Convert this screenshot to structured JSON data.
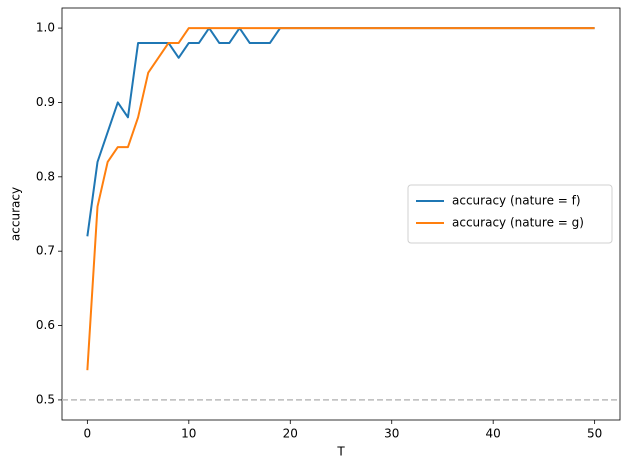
{
  "chart_data": {
    "type": "line",
    "xlabel": "T",
    "ylabel": "accuracy",
    "x": [
      0,
      1,
      2,
      3,
      4,
      5,
      6,
      7,
      8,
      9,
      10,
      11,
      12,
      13,
      14,
      15,
      16,
      17,
      18,
      19,
      20,
      21,
      22,
      23,
      24,
      25,
      26,
      27,
      28,
      29,
      30,
      31,
      32,
      33,
      34,
      35,
      36,
      37,
      38,
      39,
      40,
      41,
      42,
      43,
      44,
      45,
      46,
      47,
      48,
      49,
      50
    ],
    "series": [
      {
        "name": "accuracy (nature = f)",
        "color": "#1f77b4",
        "values": [
          0.72,
          0.82,
          0.86,
          0.9,
          0.88,
          0.98,
          0.98,
          0.98,
          0.98,
          0.96,
          0.98,
          0.98,
          1,
          0.98,
          0.98,
          1,
          0.98,
          0.98,
          0.98,
          1,
          1,
          1,
          1,
          1,
          1,
          1,
          1,
          1,
          1,
          1,
          1,
          1,
          1,
          1,
          1,
          1,
          1,
          1,
          1,
          1,
          1,
          1,
          1,
          1,
          1,
          1,
          1,
          1,
          1,
          1,
          1
        ]
      },
      {
        "name": "accuracy (nature = g)",
        "color": "#ff7f0e",
        "values": [
          0.54,
          0.76,
          0.82,
          0.84,
          0.84,
          0.88,
          0.94,
          0.96,
          0.98,
          0.98,
          1,
          1,
          1,
          1,
          1,
          1,
          1,
          1,
          1,
          1,
          1,
          1,
          1,
          1,
          1,
          1,
          1,
          1,
          1,
          1,
          1,
          1,
          1,
          1,
          1,
          1,
          1,
          1,
          1,
          1,
          1,
          1,
          1,
          1,
          1,
          1,
          1,
          1,
          1,
          1,
          1
        ]
      }
    ],
    "hline": {
      "value": 0.5,
      "color": "#bbbbbb",
      "style": "dashed"
    },
    "xlim": [
      -2.5,
      52.5
    ],
    "xticks": [
      0,
      10,
      20,
      30,
      40,
      50
    ],
    "ylim": [
      0.473,
      1.027
    ],
    "yticks": [
      0.5,
      0.6,
      0.7,
      0.8,
      0.9,
      {
        "value": 1,
        "label": "1.0"
      }
    ],
    "legend": "center right"
  }
}
